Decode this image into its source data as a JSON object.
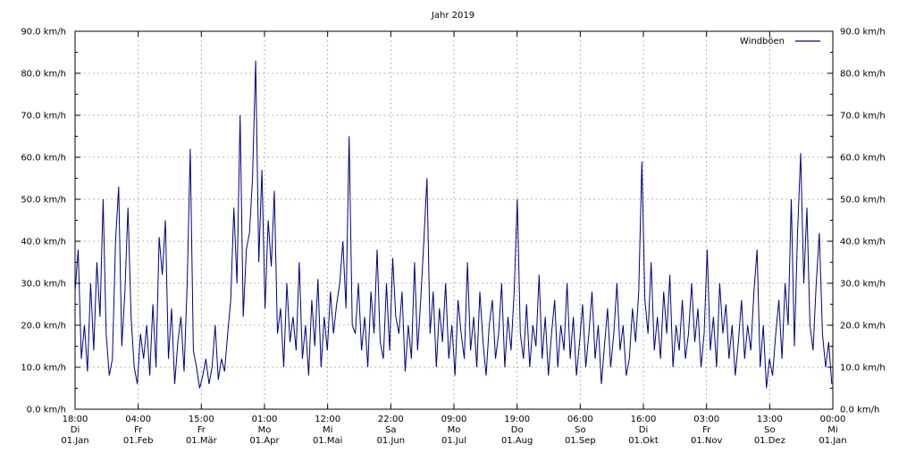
{
  "chart_data": {
    "type": "line",
    "title": "Jahr 2019",
    "ylim": [
      0,
      90
    ],
    "y_unit": "km/h",
    "y_ticks": [
      {
        "value": 0,
        "label": "0.0 km/h"
      },
      {
        "value": 10,
        "label": "10.0 km/h"
      },
      {
        "value": 20,
        "label": "20.0 km/h"
      },
      {
        "value": 30,
        "label": "30.0 km/h"
      },
      {
        "value": 40,
        "label": "40.0 km/h"
      },
      {
        "value": 50,
        "label": "50.0 km/h"
      },
      {
        "value": 60,
        "label": "60.0 km/h"
      },
      {
        "value": 70,
        "label": "70.0 km/h"
      },
      {
        "value": 80,
        "label": "80.0 km/h"
      },
      {
        "value": 90,
        "label": "90.0 km/h"
      }
    ],
    "x_ticks": [
      {
        "time": "18:00",
        "weekday": "Di",
        "date": "01.Jan"
      },
      {
        "time": "04:00",
        "weekday": "Fr",
        "date": "01.Feb"
      },
      {
        "time": "15:00",
        "weekday": "Fr",
        "date": "01.Mär"
      },
      {
        "time": "01:00",
        "weekday": "Mo",
        "date": "01.Apr"
      },
      {
        "time": "12:00",
        "weekday": "Mi",
        "date": "01.Mai"
      },
      {
        "time": "22:00",
        "weekday": "Sa",
        "date": "01.Jun"
      },
      {
        "time": "09:00",
        "weekday": "Mo",
        "date": "01.Jul"
      },
      {
        "time": "19:00",
        "weekday": "Do",
        "date": "01.Aug"
      },
      {
        "time": "06:00",
        "weekday": "So",
        "date": "01.Sep"
      },
      {
        "time": "16:00",
        "weekday": "Di",
        "date": "01.Okt"
      },
      {
        "time": "03:00",
        "weekday": "Fr",
        "date": "01.Nov"
      },
      {
        "time": "13:00",
        "weekday": "So",
        "date": "01.Dez"
      },
      {
        "time": "00:00",
        "weekday": "Mi",
        "date": "01.Jan"
      }
    ],
    "grid": true,
    "legend_position": "top-right",
    "series": [
      {
        "name": "Windböen",
        "color": "#000080",
        "x_unit": "day of year",
        "points": [
          [
            0,
            28
          ],
          [
            1.5,
            38
          ],
          [
            3,
            12
          ],
          [
            4.5,
            20
          ],
          [
            6,
            9
          ],
          [
            7.5,
            30
          ],
          [
            9,
            14
          ],
          [
            10.5,
            35
          ],
          [
            12,
            22
          ],
          [
            13.5,
            50
          ],
          [
            15,
            18
          ],
          [
            16.5,
            8
          ],
          [
            18,
            12
          ],
          [
            19.5,
            40
          ],
          [
            21,
            53
          ],
          [
            22.5,
            15
          ],
          [
            24,
            28
          ],
          [
            25.5,
            48
          ],
          [
            27,
            22
          ],
          [
            28.5,
            10
          ],
          [
            30,
            6
          ],
          [
            31.5,
            18
          ],
          [
            33,
            12
          ],
          [
            34.5,
            20
          ],
          [
            36,
            8
          ],
          [
            37.5,
            25
          ],
          [
            39,
            10
          ],
          [
            40.5,
            41
          ],
          [
            42,
            32
          ],
          [
            43.5,
            45
          ],
          [
            45,
            12
          ],
          [
            46.5,
            24
          ],
          [
            48,
            6
          ],
          [
            49.5,
            16
          ],
          [
            51,
            22
          ],
          [
            52.5,
            9
          ],
          [
            54,
            30
          ],
          [
            55.5,
            62
          ],
          [
            57,
            14
          ],
          [
            58.5,
            10
          ],
          [
            60,
            5
          ],
          [
            61.5,
            8
          ],
          [
            63,
            12
          ],
          [
            64.5,
            6
          ],
          [
            66,
            10
          ],
          [
            67.5,
            20
          ],
          [
            69,
            7
          ],
          [
            70.5,
            12
          ],
          [
            72,
            9
          ],
          [
            73.5,
            18
          ],
          [
            75,
            26
          ],
          [
            76.5,
            48
          ],
          [
            78,
            30
          ],
          [
            79.5,
            70
          ],
          [
            81,
            22
          ],
          [
            82.5,
            38
          ],
          [
            84,
            42
          ],
          [
            85.5,
            55
          ],
          [
            87,
            83
          ],
          [
            88.5,
            35
          ],
          [
            90,
            57
          ],
          [
            91.5,
            24
          ],
          [
            93,
            45
          ],
          [
            94.5,
            34
          ],
          [
            96,
            52
          ],
          [
            97.5,
            18
          ],
          [
            99,
            24
          ],
          [
            100.5,
            10
          ],
          [
            102,
            30
          ],
          [
            103.5,
            16
          ],
          [
            105,
            22
          ],
          [
            106.5,
            14
          ],
          [
            108,
            35
          ],
          [
            109.5,
            12
          ],
          [
            111,
            20
          ],
          [
            112.5,
            8
          ],
          [
            114,
            26
          ],
          [
            115.5,
            15
          ],
          [
            117,
            31
          ],
          [
            118.5,
            10
          ],
          [
            120,
            22
          ],
          [
            121.5,
            14
          ],
          [
            123,
            28
          ],
          [
            124.5,
            18
          ],
          [
            126,
            25
          ],
          [
            127.5,
            30
          ],
          [
            129,
            40
          ],
          [
            130.5,
            24
          ],
          [
            132,
            65
          ],
          [
            133.5,
            20
          ],
          [
            135,
            18
          ],
          [
            136.5,
            30
          ],
          [
            138,
            14
          ],
          [
            139.5,
            22
          ],
          [
            141,
            10
          ],
          [
            142.5,
            28
          ],
          [
            144,
            18
          ],
          [
            145.5,
            38
          ],
          [
            147,
            16
          ],
          [
            148.5,
            12
          ],
          [
            150,
            30
          ],
          [
            151.5,
            14
          ],
          [
            153,
            36
          ],
          [
            154.5,
            22
          ],
          [
            156,
            18
          ],
          [
            157.5,
            28
          ],
          [
            159,
            9
          ],
          [
            160.5,
            20
          ],
          [
            162,
            12
          ],
          [
            163.5,
            35
          ],
          [
            165,
            14
          ],
          [
            166.5,
            26
          ],
          [
            168,
            40
          ],
          [
            169.5,
            55
          ],
          [
            171,
            18
          ],
          [
            172.5,
            28
          ],
          [
            174,
            10
          ],
          [
            175.5,
            24
          ],
          [
            177,
            16
          ],
          [
            178.5,
            30
          ],
          [
            180,
            12
          ],
          [
            181.5,
            20
          ],
          [
            183,
            8
          ],
          [
            184.5,
            26
          ],
          [
            186,
            18
          ],
          [
            187.5,
            12
          ],
          [
            189,
            35
          ],
          [
            190.5,
            14
          ],
          [
            192,
            22
          ],
          [
            193.5,
            10
          ],
          [
            195,
            28
          ],
          [
            196.5,
            16
          ],
          [
            198,
            8
          ],
          [
            199.5,
            20
          ],
          [
            201,
            26
          ],
          [
            202.5,
            12
          ],
          [
            204,
            18
          ],
          [
            205.5,
            30
          ],
          [
            207,
            10
          ],
          [
            208.5,
            22
          ],
          [
            210,
            14
          ],
          [
            211.5,
            28
          ],
          [
            213,
            50
          ],
          [
            214.5,
            18
          ],
          [
            216,
            12
          ],
          [
            217.5,
            25
          ],
          [
            219,
            10
          ],
          [
            220.5,
            20
          ],
          [
            222,
            15
          ],
          [
            223.5,
            32
          ],
          [
            225,
            12
          ],
          [
            226.5,
            22
          ],
          [
            228,
            8
          ],
          [
            229.5,
            18
          ],
          [
            231,
            26
          ],
          [
            232.5,
            10
          ],
          [
            234,
            20
          ],
          [
            235.5,
            14
          ],
          [
            237,
            30
          ],
          [
            238.5,
            12
          ],
          [
            240,
            22
          ],
          [
            241.5,
            8
          ],
          [
            243,
            16
          ],
          [
            244.5,
            25
          ],
          [
            246,
            10
          ],
          [
            247.5,
            18
          ],
          [
            249,
            28
          ],
          [
            250.5,
            12
          ],
          [
            252,
            20
          ],
          [
            253.5,
            6
          ],
          [
            255,
            15
          ],
          [
            256.5,
            24
          ],
          [
            258,
            10
          ],
          [
            259.5,
            18
          ],
          [
            261,
            30
          ],
          [
            262.5,
            14
          ],
          [
            264,
            20
          ],
          [
            265.5,
            8
          ],
          [
            267,
            12
          ],
          [
            268.5,
            24
          ],
          [
            270,
            16
          ],
          [
            271.5,
            28
          ],
          [
            273,
            59
          ],
          [
            274.5,
            26
          ],
          [
            276,
            18
          ],
          [
            277.5,
            35
          ],
          [
            279,
            14
          ],
          [
            280.5,
            22
          ],
          [
            282,
            12
          ],
          [
            283.5,
            28
          ],
          [
            285,
            18
          ],
          [
            286.5,
            32
          ],
          [
            288,
            10
          ],
          [
            289.5,
            20
          ],
          [
            291,
            14
          ],
          [
            292.5,
            26
          ],
          [
            294,
            12
          ],
          [
            295.5,
            18
          ],
          [
            297,
            30
          ],
          [
            298.5,
            16
          ],
          [
            300,
            24
          ],
          [
            301.5,
            10
          ],
          [
            303,
            18
          ],
          [
            304.5,
            38
          ],
          [
            306,
            14
          ],
          [
            307.5,
            22
          ],
          [
            309,
            10
          ],
          [
            310.5,
            30
          ],
          [
            312,
            18
          ],
          [
            313.5,
            25
          ],
          [
            315,
            12
          ],
          [
            316.5,
            20
          ],
          [
            318,
            8
          ],
          [
            319.5,
            16
          ],
          [
            321,
            26
          ],
          [
            322.5,
            12
          ],
          [
            324,
            20
          ],
          [
            325.5,
            14
          ],
          [
            327,
            28
          ],
          [
            328.5,
            38
          ],
          [
            330,
            10
          ],
          [
            331.5,
            20
          ],
          [
            333,
            5
          ],
          [
            334.5,
            12
          ],
          [
            336,
            8
          ],
          [
            337.5,
            18
          ],
          [
            339,
            26
          ],
          [
            340.5,
            12
          ],
          [
            342,
            30
          ],
          [
            343.5,
            20
          ],
          [
            345,
            50
          ],
          [
            346.5,
            15
          ],
          [
            348,
            42
          ],
          [
            349.5,
            61
          ],
          [
            351,
            30
          ],
          [
            352.5,
            48
          ],
          [
            354,
            20
          ],
          [
            355.5,
            14
          ],
          [
            357,
            30
          ],
          [
            358.5,
            42
          ],
          [
            360,
            18
          ],
          [
            361.5,
            10
          ],
          [
            363,
            16
          ],
          [
            364.5,
            6
          ]
        ]
      }
    ]
  }
}
